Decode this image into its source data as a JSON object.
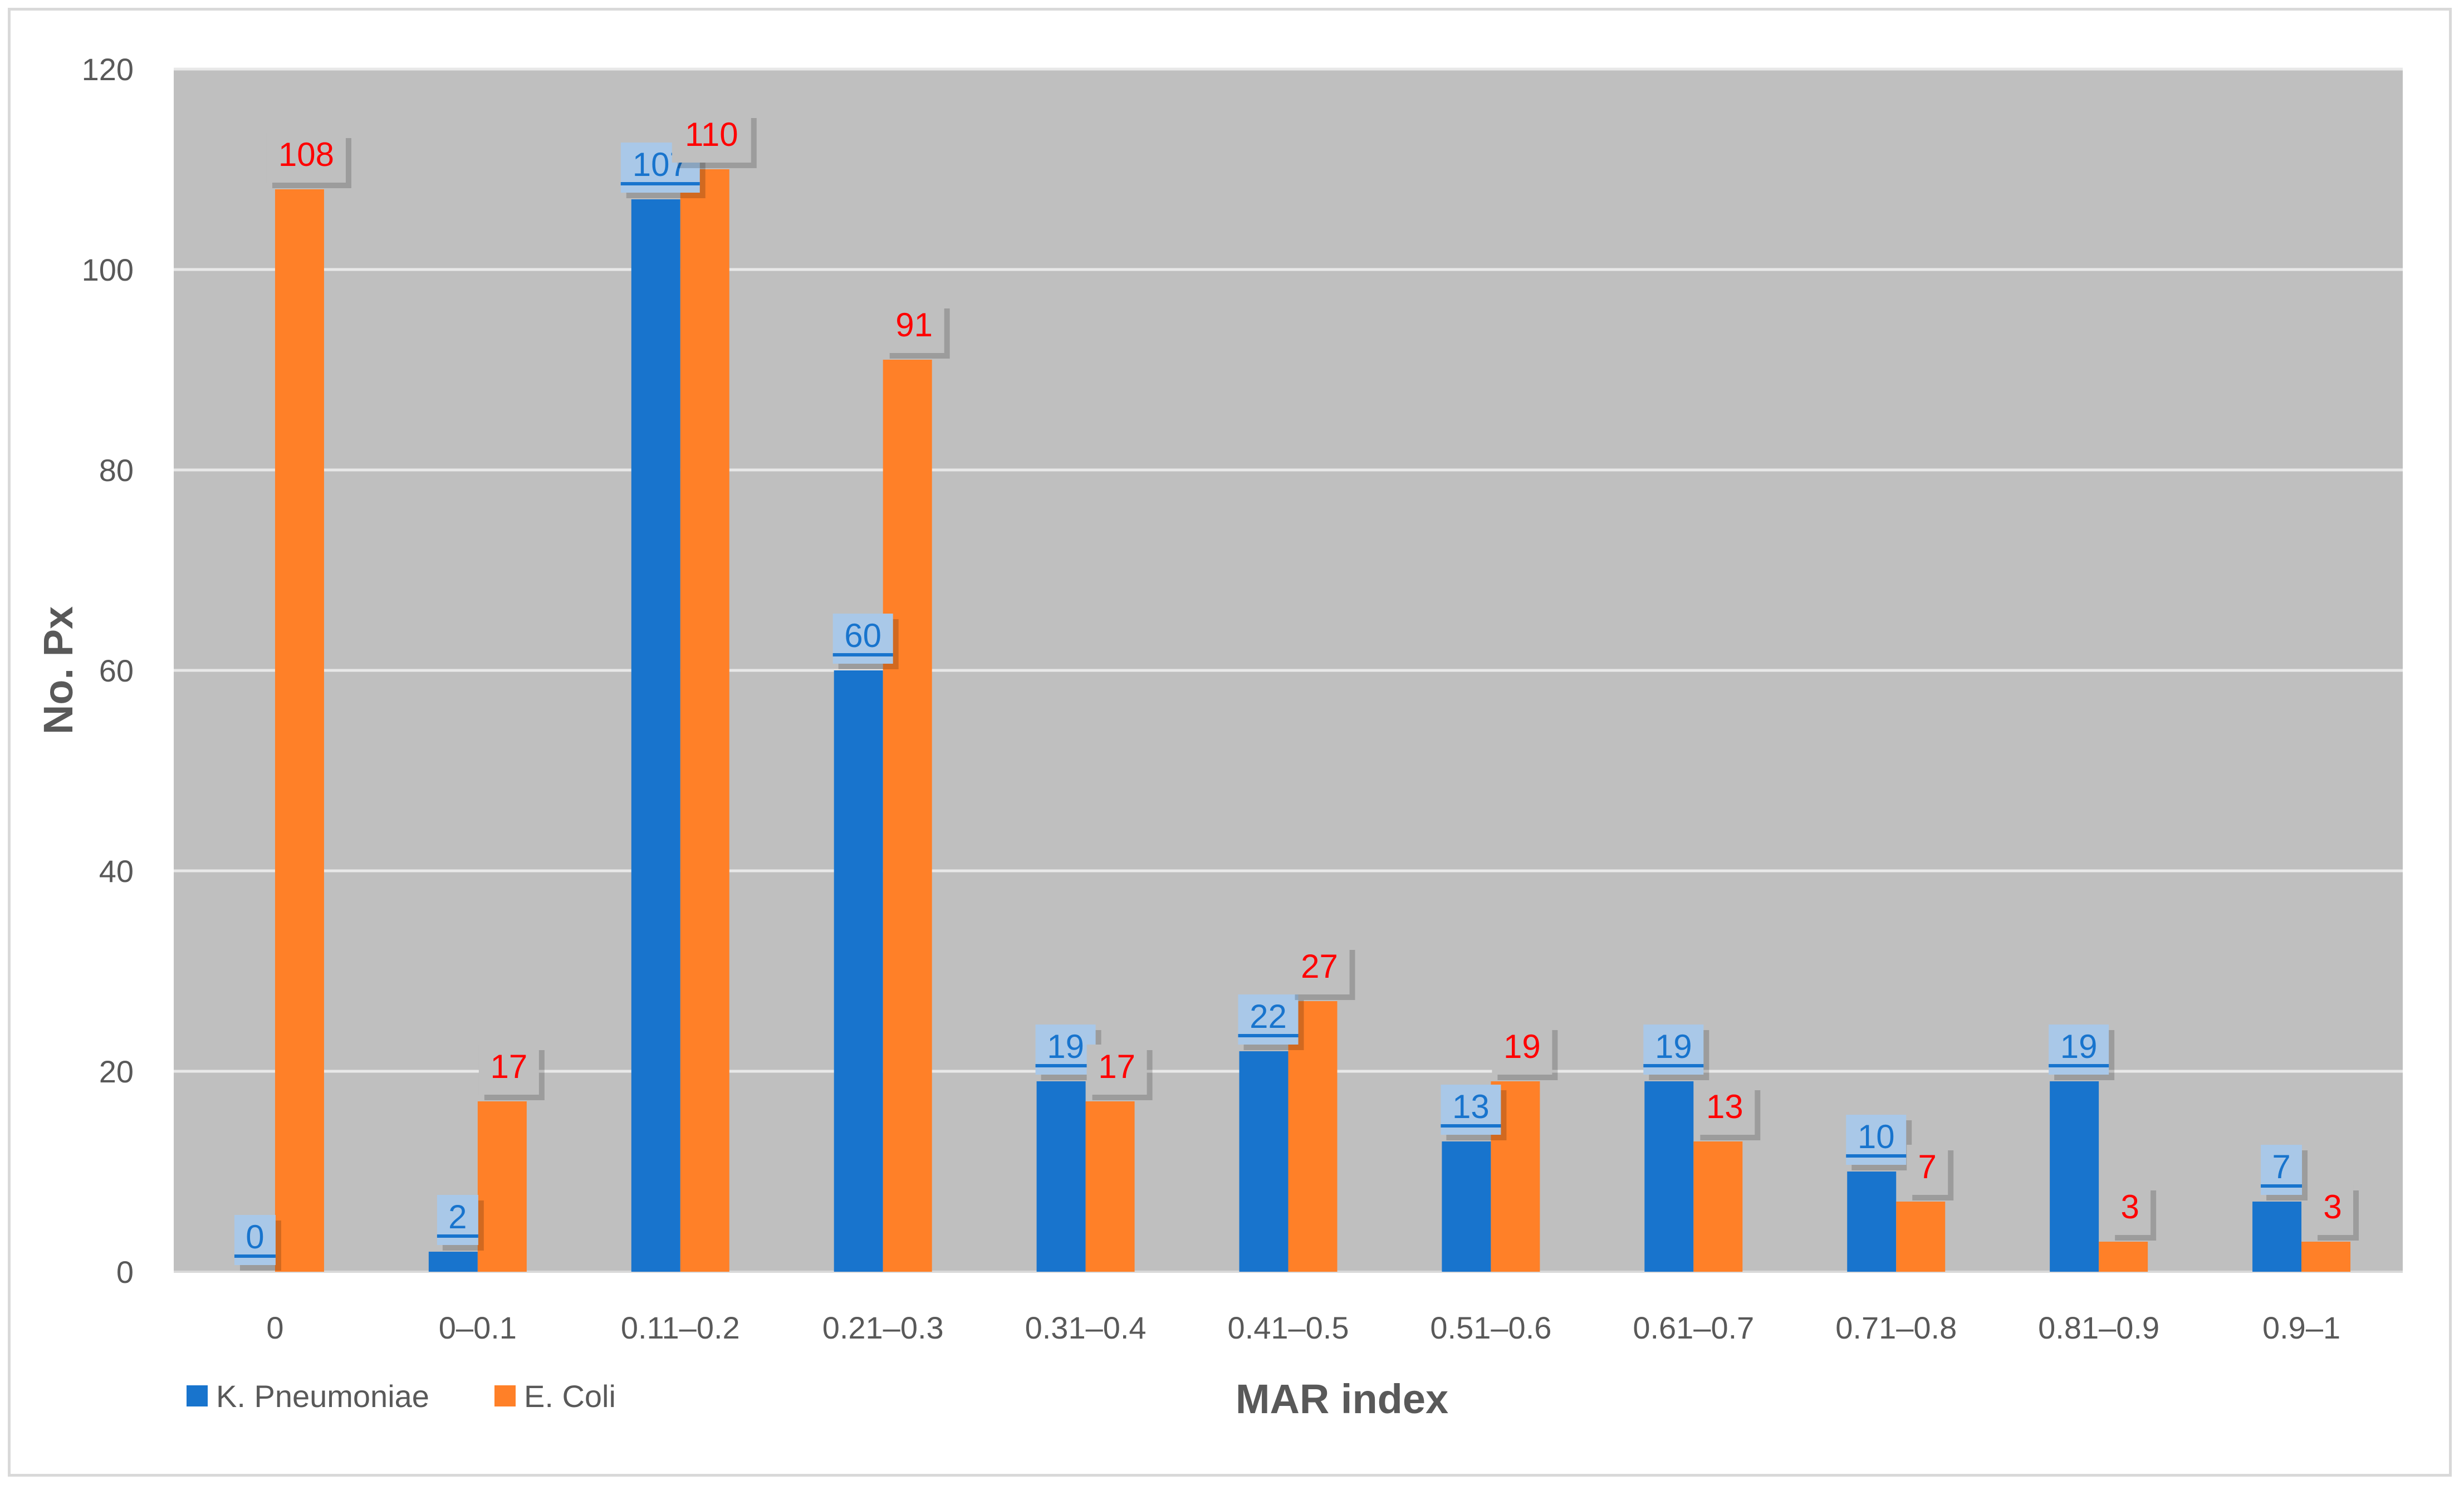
{
  "chart_data": {
    "type": "bar",
    "categories": [
      "0",
      "0–0.1",
      "0.11–0.2",
      "0.21–0.3",
      "0.31–0.4",
      "0.41–0.5",
      "0.51–0.6",
      "0.61–0.7",
      "0.71–0.8",
      "0.81–0.9",
      "0.9–1"
    ],
    "series": [
      {
        "name": "K. Pneumoniae",
        "color": "#1874cd",
        "label_color": "#1874cd",
        "label_bg": "#a9c8e8",
        "values": [
          0,
          2,
          107,
          60,
          19,
          22,
          13,
          19,
          10,
          19,
          7
        ]
      },
      {
        "name": "E. Coli",
        "color": "#ff8028",
        "label_color": "#ff0000",
        "label_bg": "#bfbfbf",
        "values": [
          108,
          17,
          110,
          91,
          17,
          27,
          19,
          13,
          7,
          3,
          3
        ]
      }
    ],
    "xlabel": "MAR index",
    "ylabel": "No. Px",
    "ylim": [
      0,
      120
    ],
    "yticks": [
      0,
      20,
      40,
      60,
      80,
      100,
      120
    ],
    "grid": true,
    "legend_position": "bottom-left",
    "plot_background": "#bfbfbf",
    "grid_color": "#e8e8e8"
  }
}
